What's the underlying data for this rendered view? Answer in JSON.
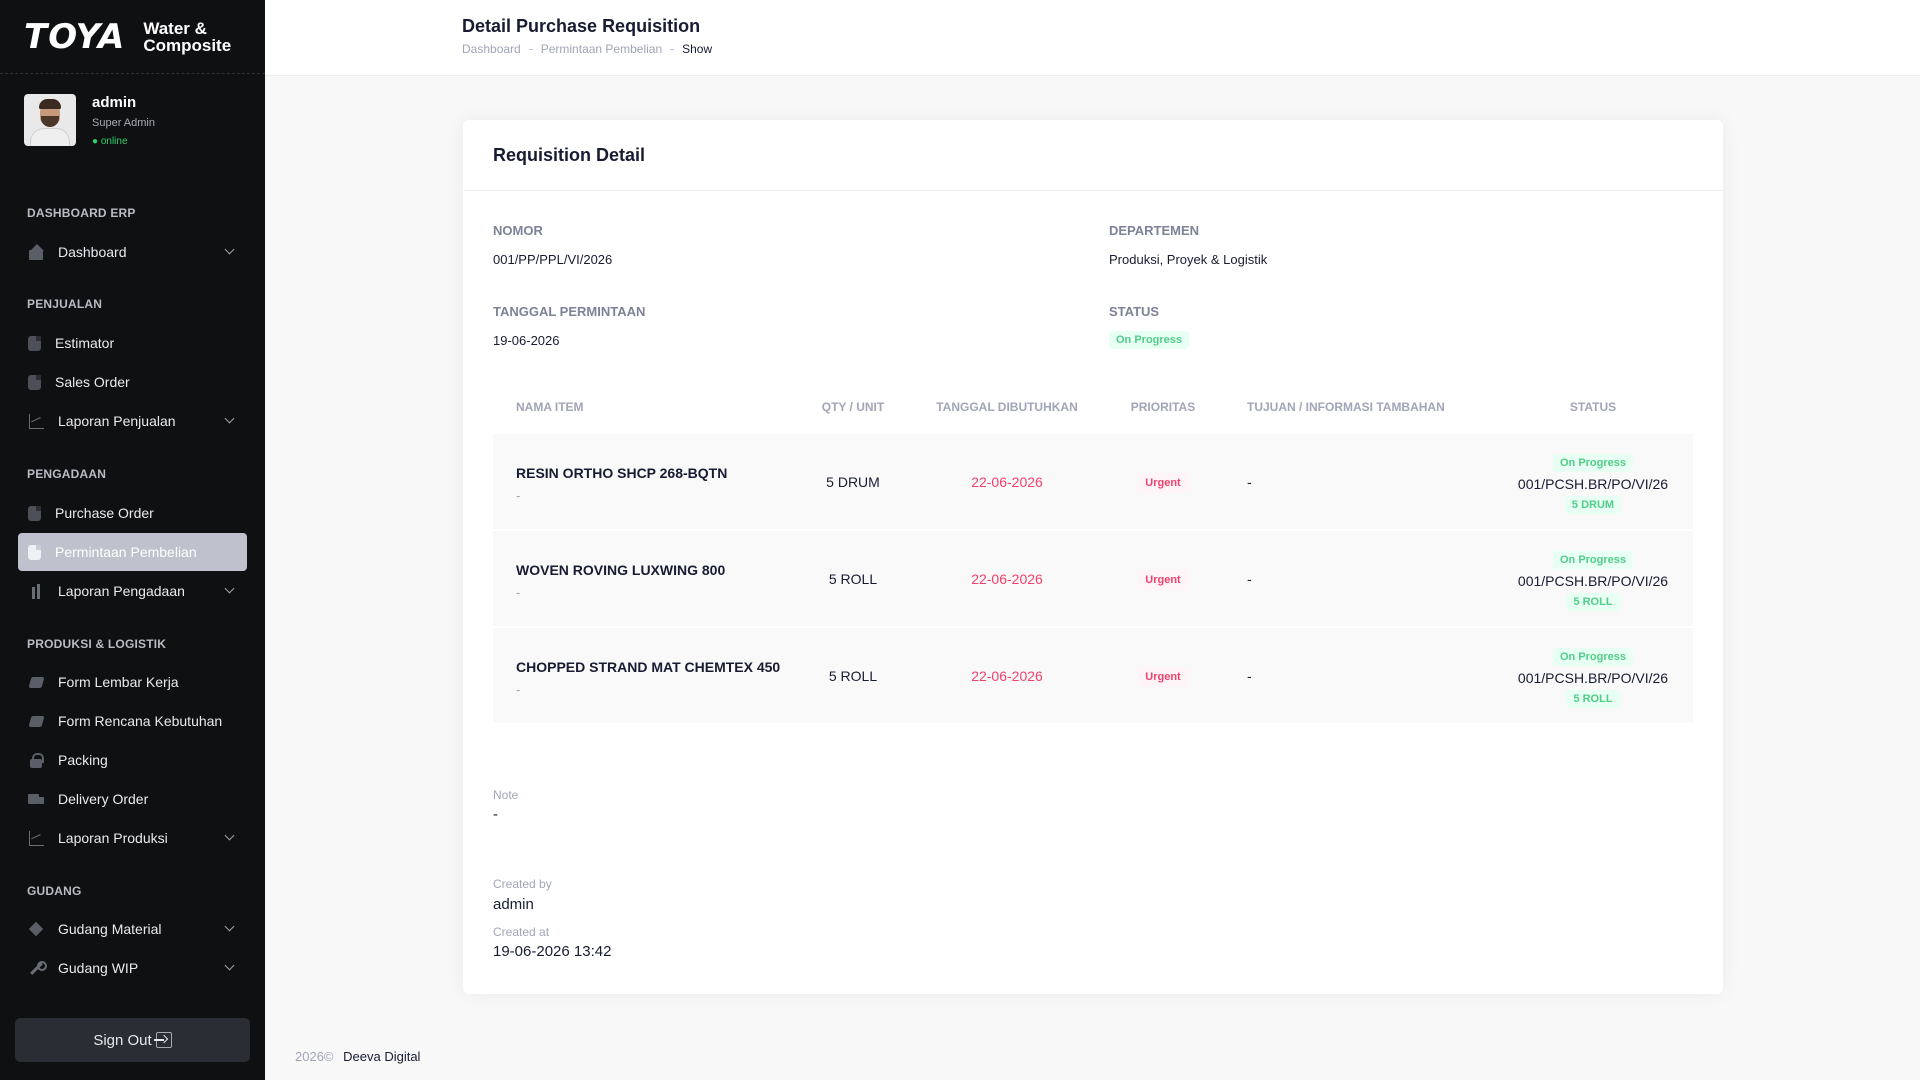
{
  "brand": {
    "logo": "TOYA",
    "subtitle_line1": "Water &",
    "subtitle_line2": "Composite"
  },
  "user": {
    "name": "admin",
    "role": "Super Admin",
    "status": "● online"
  },
  "sidebar": {
    "sections": [
      {
        "title": "DASHBOARD ERP",
        "items": [
          {
            "label": "Dashboard",
            "icon": "home-icon",
            "chevron": true
          }
        ]
      },
      {
        "title": "PENJUALAN",
        "items": [
          {
            "label": "Estimator",
            "icon": "document-icon"
          },
          {
            "label": "Sales Order",
            "icon": "document-icon"
          },
          {
            "label": "Laporan Penjualan",
            "icon": "line-chart-icon",
            "chevron": true
          }
        ]
      },
      {
        "title": "PENGADAAN",
        "items": [
          {
            "label": "Purchase Order",
            "icon": "document-icon"
          },
          {
            "label": "Permintaan Pembelian",
            "icon": "document-icon",
            "active": true
          },
          {
            "label": "Laporan Pengadaan",
            "icon": "bar-chart-icon",
            "chevron": true
          }
        ]
      },
      {
        "title": "PRODUKSI & LOGISTIK",
        "items": [
          {
            "label": "Form Lembar Kerja",
            "icon": "pen-icon"
          },
          {
            "label": "Form Rencana Kebutuhan",
            "icon": "pen-icon"
          },
          {
            "label": "Packing",
            "icon": "lock-icon"
          },
          {
            "label": "Delivery Order",
            "icon": "truck-icon"
          },
          {
            "label": "Laporan Produksi",
            "icon": "line-chart-icon",
            "chevron": true
          }
        ]
      },
      {
        "title": "GUDANG",
        "items": [
          {
            "label": "Gudang Material",
            "icon": "box-icon",
            "chevron": true
          },
          {
            "label": "Gudang WIP",
            "icon": "wrench-icon",
            "chevron": true
          }
        ]
      }
    ],
    "sign_out": "Sign Out"
  },
  "header": {
    "title": "Detail Purchase Requisition",
    "breadcrumb": [
      "Dashboard",
      "Permintaan Pembelian",
      "Show"
    ]
  },
  "card": {
    "title": "Requisition Detail",
    "fields": {
      "nomor_label": "NOMOR",
      "nomor": "001/PP/PPL/VI/2026",
      "departemen_label": "DEPARTEMEN",
      "departemen": "Produksi, Proyek & Logistik",
      "tanggal_label": "TANGGAL PERMINTAAN",
      "tanggal": "19-06-2026",
      "status_label": "STATUS",
      "status": "On Progress"
    },
    "table": {
      "headers": [
        "NAMA ITEM",
        "QTY / UNIT",
        "TANGGAL DIBUTUHKAN",
        "PRIORITAS",
        "TUJUAN / INFORMASI TAMBAHAN",
        "STATUS"
      ],
      "rows": [
        {
          "name": "RESIN ORTHO SHCP 268-BQTN",
          "sub": "-",
          "qty": "5 DRUM",
          "date": "22-06-2026",
          "priority": "Urgent",
          "info": "-",
          "status": "On Progress",
          "po": "001/PCSH.BR/PO/VI/26",
          "po_qty": "5 DRUM"
        },
        {
          "name": "WOVEN ROVING LUXWING 800",
          "sub": "-",
          "qty": "5 ROLL",
          "date": "22-06-2026",
          "priority": "Urgent",
          "info": "-",
          "status": "On Progress",
          "po": "001/PCSH.BR/PO/VI/26",
          "po_qty": "5 ROLL"
        },
        {
          "name": "CHOPPED STRAND MAT CHEMTEX 450",
          "sub": "-",
          "qty": "5 ROLL",
          "date": "22-06-2026",
          "priority": "Urgent",
          "info": "-",
          "status": "On Progress",
          "po": "001/PCSH.BR/PO/VI/26",
          "po_qty": "5 ROLL"
        }
      ]
    },
    "note_label": "Note",
    "note": "-",
    "created_by_label": "Created by",
    "created_by": "admin",
    "created_at_label": "Created at",
    "created_at": "19-06-2026 13:42"
  },
  "footer": {
    "year": "2026©",
    "company": "Deeva Digital"
  },
  "colors": {
    "sidebar_bg": "#0f1012",
    "accent_red": "#f1416c",
    "accent_green": "#50cd89"
  }
}
